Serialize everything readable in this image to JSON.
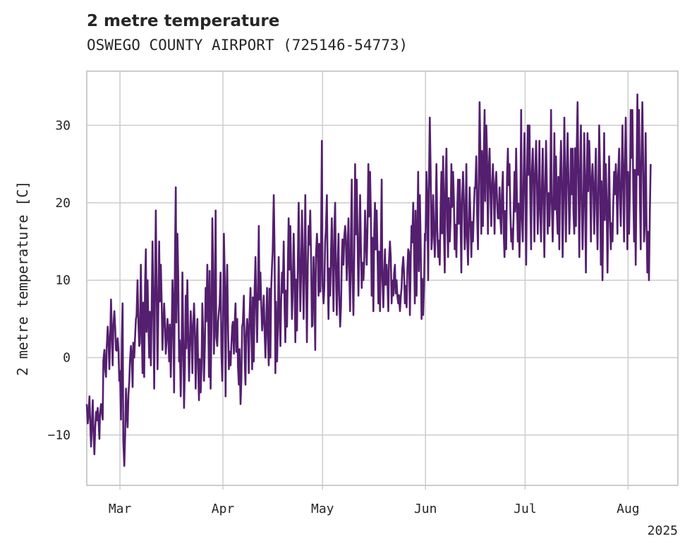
{
  "chart_data": {
    "type": "line",
    "title": "2 metre temperature",
    "subtitle": "OSWEGO COUNTY AIRPORT (725146-54773)",
    "xlabel": "",
    "ylabel": "2 metre temperature [C]",
    "x_range": [
      "2025-02-19",
      "2025-08-16"
    ],
    "ylim": [
      -16.5,
      37
    ],
    "x_ticks": [
      {
        "date": "2025-03-01",
        "label": "Mar"
      },
      {
        "date": "2025-04-01",
        "label": "Apr"
      },
      {
        "date": "2025-05-01",
        "label": "May"
      },
      {
        "date": "2025-06-01",
        "label": "Jun"
      },
      {
        "date": "2025-07-01",
        "label": "Jul"
      },
      {
        "date": "2025-08-01",
        "label": "Aug"
      }
    ],
    "year_label": "2025",
    "y_ticks": [
      -10,
      0,
      10,
      20,
      30
    ],
    "y_tick_labels": [
      "−10",
      "0",
      "10",
      "20",
      "30"
    ],
    "grid": true,
    "line_color": "#541f6e",
    "series": [
      {
        "name": "",
        "x": [
          "2025-02-19",
          "2025-02-20",
          "2025-02-21",
          "2025-02-22",
          "2025-02-23",
          "2025-02-24",
          "2025-02-25",
          "2025-02-26",
          "2025-02-27",
          "2025-02-28",
          "2025-03-01",
          "2025-03-02",
          "2025-03-03",
          "2025-03-04",
          "2025-03-05",
          "2025-03-06",
          "2025-03-07",
          "2025-03-08",
          "2025-03-09",
          "2025-03-10",
          "2025-03-11",
          "2025-03-12",
          "2025-03-13",
          "2025-03-14",
          "2025-03-15",
          "2025-03-16",
          "2025-03-17",
          "2025-03-18",
          "2025-03-19",
          "2025-03-20",
          "2025-03-21",
          "2025-03-22",
          "2025-03-23",
          "2025-03-24",
          "2025-03-25",
          "2025-03-26",
          "2025-03-27",
          "2025-03-28",
          "2025-03-29",
          "2025-03-30",
          "2025-03-31",
          "2025-04-01",
          "2025-04-02",
          "2025-04-03",
          "2025-04-04",
          "2025-04-05",
          "2025-04-06",
          "2025-04-07",
          "2025-04-08",
          "2025-04-09",
          "2025-04-10",
          "2025-04-11",
          "2025-04-12",
          "2025-04-13",
          "2025-04-14",
          "2025-04-15",
          "2025-04-16",
          "2025-04-17",
          "2025-04-18",
          "2025-04-19",
          "2025-04-20",
          "2025-04-21",
          "2025-04-22",
          "2025-04-23",
          "2025-04-24",
          "2025-04-25",
          "2025-04-26",
          "2025-04-27",
          "2025-04-28",
          "2025-04-29",
          "2025-04-30",
          "2025-05-01",
          "2025-05-02",
          "2025-05-03",
          "2025-05-04",
          "2025-05-05",
          "2025-05-06",
          "2025-05-07",
          "2025-05-08",
          "2025-05-09",
          "2025-05-10",
          "2025-05-11",
          "2025-05-12",
          "2025-05-13",
          "2025-05-14",
          "2025-05-15",
          "2025-05-16",
          "2025-05-17",
          "2025-05-18",
          "2025-05-19",
          "2025-05-20",
          "2025-05-21",
          "2025-05-22",
          "2025-05-23",
          "2025-05-24",
          "2025-05-25",
          "2025-05-26",
          "2025-05-27",
          "2025-05-28",
          "2025-05-29",
          "2025-05-30",
          "2025-05-31",
          "2025-06-01",
          "2025-06-02",
          "2025-06-03",
          "2025-06-04",
          "2025-06-05",
          "2025-06-06",
          "2025-06-07",
          "2025-06-08",
          "2025-06-09",
          "2025-06-10",
          "2025-06-11",
          "2025-06-12",
          "2025-06-13",
          "2025-06-14",
          "2025-06-15",
          "2025-06-16",
          "2025-06-17",
          "2025-06-18",
          "2025-06-19",
          "2025-06-20",
          "2025-06-21",
          "2025-06-22",
          "2025-06-23",
          "2025-06-24",
          "2025-06-25",
          "2025-06-26",
          "2025-06-27",
          "2025-06-28",
          "2025-06-29",
          "2025-06-30",
          "2025-07-01",
          "2025-07-02",
          "2025-07-03",
          "2025-07-04",
          "2025-07-05",
          "2025-07-06",
          "2025-07-07",
          "2025-07-08",
          "2025-07-09",
          "2025-07-10",
          "2025-07-11",
          "2025-07-12",
          "2025-07-13",
          "2025-07-14",
          "2025-07-15",
          "2025-07-16",
          "2025-07-17",
          "2025-07-18",
          "2025-07-19",
          "2025-07-20",
          "2025-07-21",
          "2025-07-22",
          "2025-07-23",
          "2025-07-24",
          "2025-07-25",
          "2025-07-26",
          "2025-07-27",
          "2025-07-28",
          "2025-07-29",
          "2025-07-30",
          "2025-07-31",
          "2025-08-01",
          "2025-08-02",
          "2025-08-03",
          "2025-08-04",
          "2025-08-05",
          "2025-08-06",
          "2025-08-07",
          "2025-08-08",
          "2025-08-09",
          "2025-08-10",
          "2025-08-11",
          "2025-08-12",
          "2025-08-13",
          "2025-08-14",
          "2025-08-15"
        ],
        "y_min": [
          -8.5,
          -11.5,
          -12.5,
          -10.5,
          -8,
          -2.5,
          -1.5,
          -1,
          1,
          -3,
          -8,
          -14,
          -9,
          -3.8,
          0,
          1.5,
          -2,
          -2.5,
          0,
          -1,
          -4,
          -1.5,
          1,
          0.5,
          -0.5,
          -2.5,
          -4.5,
          -0.5,
          -5,
          -6.5,
          -3,
          -2,
          -4,
          -5.5,
          -4.5,
          -3,
          -2.5,
          -4,
          0.5,
          1.5,
          -3,
          -5,
          -1.5,
          -1,
          0.5,
          -3.5,
          -6,
          -3.5,
          -2,
          -1.5,
          -0.5,
          2,
          3.5,
          0,
          -1,
          0,
          -2,
          -0.5,
          1.5,
          2,
          4,
          5,
          2,
          3.5,
          6,
          5,
          2,
          4,
          1,
          8,
          8.5,
          7,
          5,
          8,
          6,
          5.5,
          4,
          12,
          10,
          6,
          5.5,
          8,
          9,
          10,
          12,
          8,
          6,
          7,
          6,
          6.5,
          6,
          7,
          8,
          7,
          6,
          7,
          6.5,
          5.5,
          7,
          8,
          5,
          5.5,
          10,
          14,
          13,
          13,
          12,
          11,
          13,
          15,
          14,
          13,
          11,
          14,
          12,
          13,
          15,
          14,
          16,
          17,
          16,
          17,
          16,
          18,
          16,
          13,
          14,
          15,
          14,
          15,
          13,
          15,
          12,
          14,
          15,
          16,
          15,
          13,
          16,
          17,
          15,
          16,
          14,
          13,
          15,
          16,
          16,
          17,
          13,
          14,
          11,
          15,
          16,
          14,
          12,
          10,
          11,
          14,
          15,
          16,
          17,
          15,
          14,
          16,
          15,
          12,
          14,
          15,
          11,
          10,
          9.5,
          10,
          12,
          14,
          15,
          15,
          16,
          15,
          15,
          17
        ],
        "y_max": [
          -5,
          -5.5,
          -7,
          -6.5,
          -6,
          1,
          4,
          7.5,
          6,
          2.5,
          7,
          -4,
          -3,
          1.5,
          5,
          10,
          12,
          14,
          10,
          15,
          19,
          15,
          12,
          7,
          5,
          10,
          22,
          16,
          11,
          8,
          10,
          6,
          7,
          5,
          7,
          9,
          12,
          18,
          19,
          6,
          11,
          16,
          12,
          4,
          7,
          5,
          4,
          8,
          5,
          9,
          13,
          17,
          11,
          8,
          9,
          12,
          21,
          13,
          11,
          15,
          18,
          17,
          16,
          20,
          19,
          21,
          17,
          19,
          13,
          16,
          28,
          15,
          21,
          18,
          20,
          16,
          13,
          17,
          18,
          23,
          25,
          23,
          21,
          19,
          25,
          24,
          20,
          19,
          23,
          14,
          12,
          15,
          12,
          10,
          9,
          13,
          14,
          17,
          20,
          24,
          21,
          16,
          24,
          31,
          21,
          25,
          24,
          26,
          27,
          25,
          24,
          23,
          23,
          24,
          25,
          22,
          22,
          26,
          33,
          32,
          30,
          27,
          25,
          24,
          22,
          24,
          27,
          25,
          24,
          27,
          32,
          29,
          30,
          30,
          27,
          28,
          28,
          27,
          28,
          32,
          29,
          26,
          28,
          31,
          29,
          27,
          27,
          33,
          30,
          29,
          29,
          28,
          25,
          27,
          30,
          29,
          25,
          26,
          24,
          25,
          27,
          30,
          31,
          32,
          32,
          34,
          32,
          33,
          29,
          25
        ]
      }
    ]
  }
}
